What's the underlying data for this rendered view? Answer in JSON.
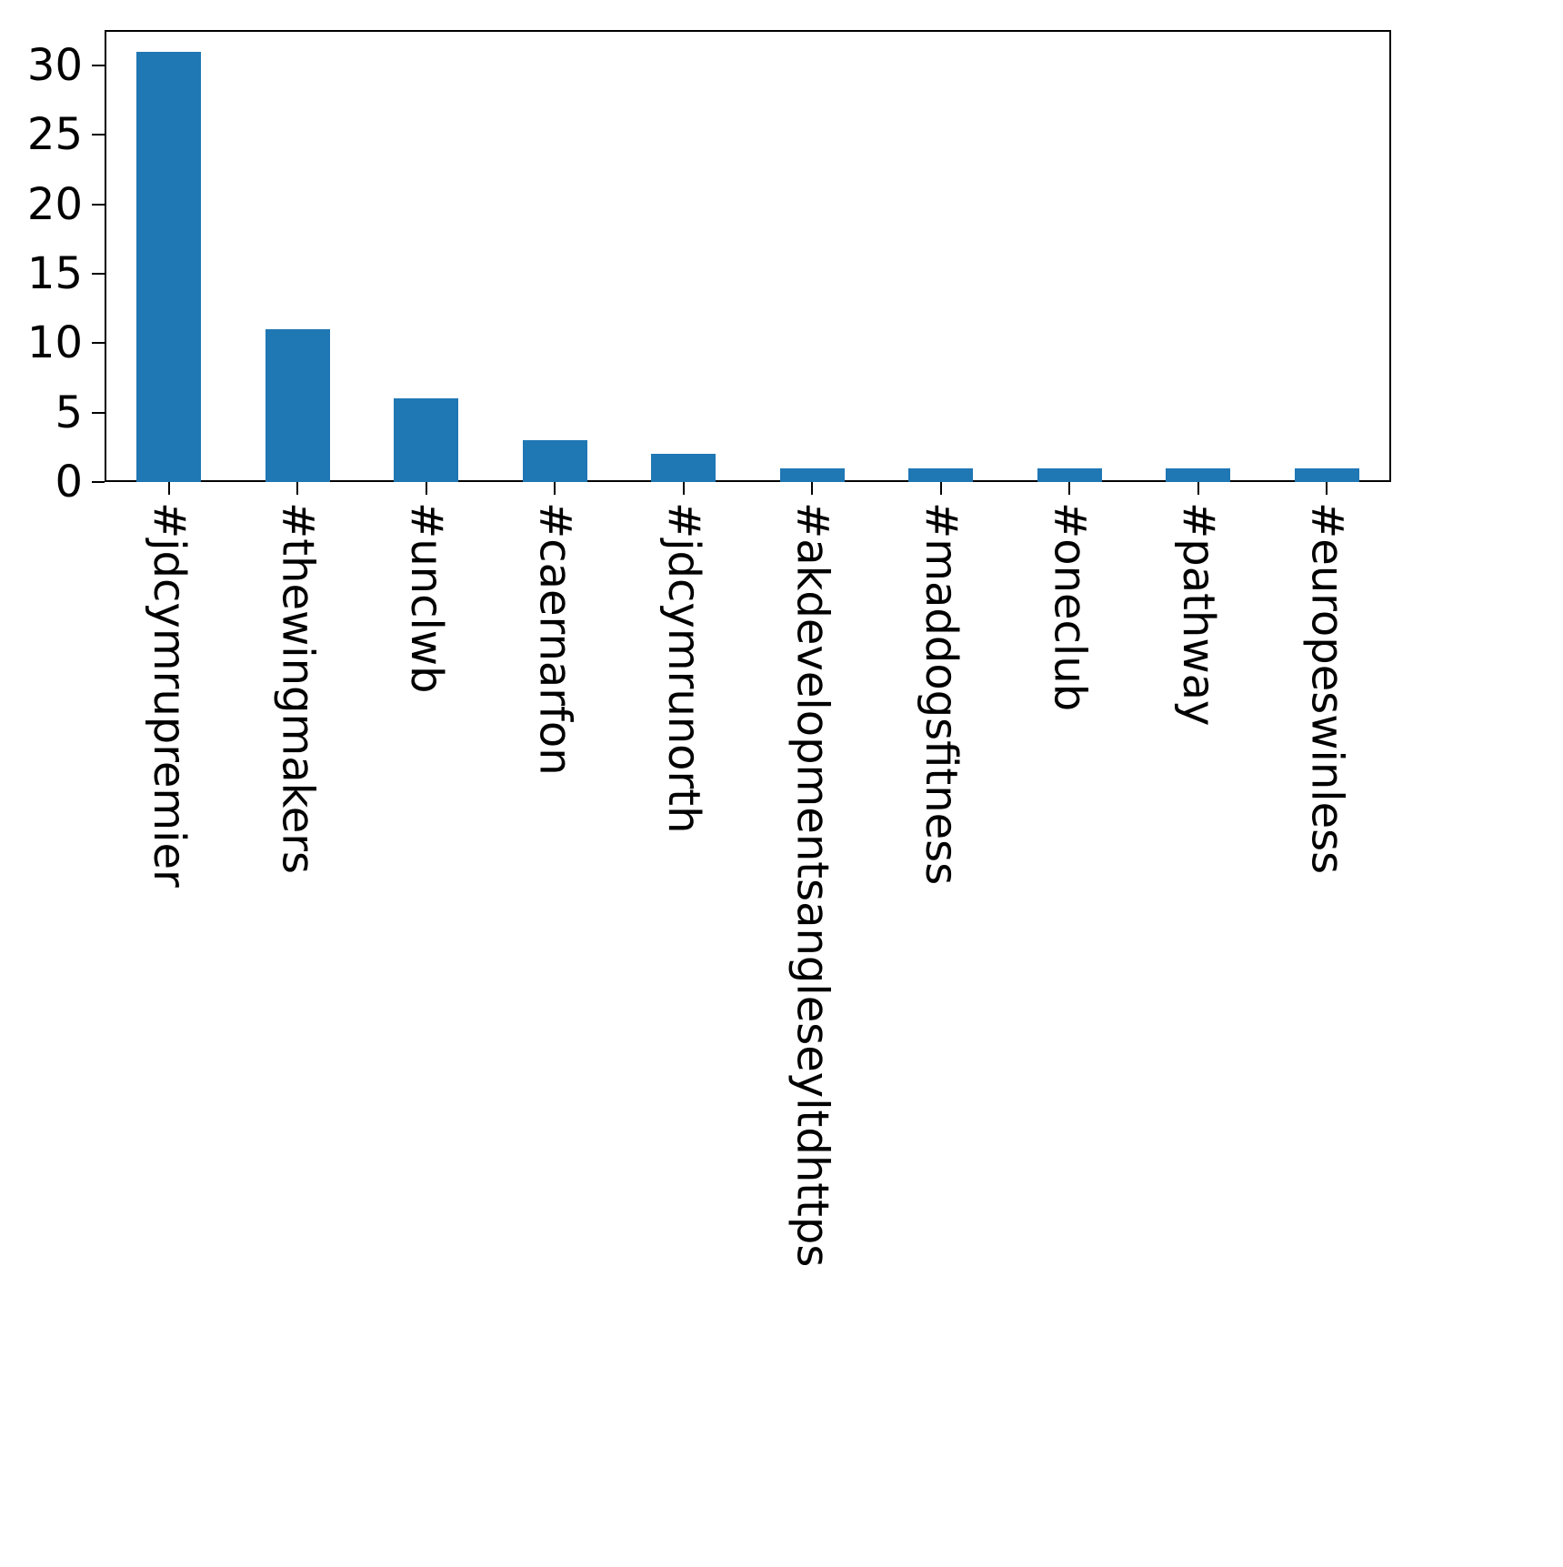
{
  "chart_data": {
    "type": "bar",
    "categories": [
      "#jdcymrupremier",
      "#thewingmakers",
      "#unclwb",
      "#caernarfon",
      "#jdcymrunorth",
      "#akdevelopmentsangleseyltdhttps",
      "#maddogsfitness",
      "#oneclub",
      "#pathway",
      "#europeswinless"
    ],
    "values": [
      31,
      11,
      6,
      3,
      2,
      1,
      1,
      1,
      1,
      1
    ],
    "title": "",
    "xlabel": "",
    "ylabel": "",
    "ylim": [
      0,
      32.55
    ],
    "yticks": [
      0,
      5,
      10,
      15,
      20,
      25,
      30
    ],
    "bar_color": "#1f77b4",
    "axis_color": "#000000",
    "grid": false,
    "legend_position": "none",
    "x_label_rotation": "vertical-top-to-bottom"
  }
}
